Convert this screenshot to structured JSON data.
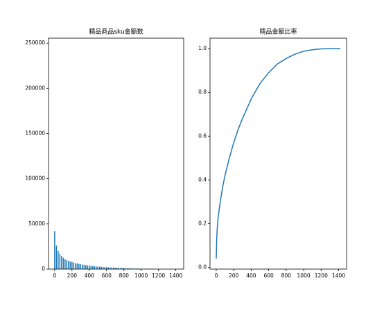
{
  "chart_data": [
    {
      "type": "bar",
      "title": "精品商品sku金额数",
      "color": "#1f77b4",
      "x": [
        0,
        20,
        40,
        60,
        80,
        100,
        120,
        140,
        160,
        180,
        200,
        220,
        240,
        260,
        280,
        300,
        320,
        340,
        360,
        380,
        400,
        420,
        440,
        460,
        480,
        500,
        520,
        540,
        560,
        580,
        600,
        620,
        640,
        660,
        680,
        700,
        720,
        740,
        760,
        780,
        800,
        820,
        840,
        860,
        880,
        900,
        920,
        940,
        960,
        980,
        1000,
        1020,
        1040,
        1060,
        1080,
        1100,
        1120,
        1140,
        1160,
        1180,
        1200,
        1220,
        1240
      ],
      "values": [
        42000,
        26000,
        20000,
        17000,
        14500,
        12500,
        11000,
        10000,
        9200,
        8500,
        7800,
        7200,
        6700,
        6200,
        5800,
        5400,
        5000,
        4700,
        4400,
        4100,
        3900,
        3600,
        3400,
        3200,
        3000,
        2800,
        2650,
        2500,
        2350,
        2200,
        2050,
        1950,
        1850,
        1750,
        1650,
        1550,
        1450,
        1350,
        1250,
        1150,
        1080,
        1000,
        920,
        850,
        780,
        720,
        660,
        600,
        550,
        500,
        450,
        400,
        360,
        320,
        280,
        240,
        200,
        170,
        140,
        110,
        80,
        50,
        30
      ],
      "xlim": [
        -71,
        1491
      ],
      "ylim": [
        0,
        255500
      ],
      "xticks": [
        0,
        200,
        400,
        600,
        800,
        1000,
        1200,
        1400
      ],
      "yticks": [
        0,
        50000,
        100000,
        150000,
        200000,
        250000
      ]
    },
    {
      "type": "line",
      "title": "精品金额比率",
      "color": "#1f77b4",
      "x": [
        0,
        5,
        10,
        20,
        35,
        50,
        75,
        100,
        150,
        200,
        250,
        300,
        400,
        500,
        600,
        700,
        800,
        900,
        1000,
        1100,
        1200,
        1300,
        1420
      ],
      "values": [
        0.04,
        0.12,
        0.17,
        0.22,
        0.27,
        0.31,
        0.37,
        0.42,
        0.5,
        0.57,
        0.63,
        0.68,
        0.77,
        0.84,
        0.89,
        0.93,
        0.955,
        0.975,
        0.988,
        0.995,
        0.999,
        1.0,
        1.0
      ],
      "xlim": [
        -71,
        1491
      ],
      "ylim": [
        -0.008,
        1.048
      ],
      "xticks": [
        0,
        200,
        400,
        600,
        800,
        1000,
        1200,
        1400
      ],
      "yticks": [
        {
          "value": 0,
          "label": "0.0"
        },
        0.2,
        0.4,
        0.6,
        0.8,
        {
          "value": 1,
          "label": "1.0"
        }
      ]
    }
  ]
}
